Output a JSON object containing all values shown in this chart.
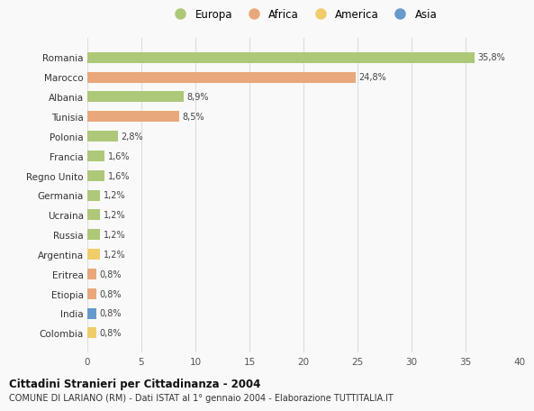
{
  "categories": [
    "Romania",
    "Marocco",
    "Albania",
    "Tunisia",
    "Polonia",
    "Francia",
    "Regno Unito",
    "Germania",
    "Ucraina",
    "Russia",
    "Argentina",
    "Eritrea",
    "Etiopia",
    "India",
    "Colombia"
  ],
  "values": [
    35.8,
    24.8,
    8.9,
    8.5,
    2.8,
    1.6,
    1.6,
    1.2,
    1.2,
    1.2,
    1.2,
    0.8,
    0.8,
    0.8,
    0.8
  ],
  "labels": [
    "35,8%",
    "24,8%",
    "8,9%",
    "8,5%",
    "2,8%",
    "1,6%",
    "1,6%",
    "1,2%",
    "1,2%",
    "1,2%",
    "1,2%",
    "0,8%",
    "0,8%",
    "0,8%",
    "0,8%"
  ],
  "continents": [
    "Europa",
    "Africa",
    "Europa",
    "Africa",
    "Europa",
    "Europa",
    "Europa",
    "Europa",
    "Europa",
    "Europa",
    "America",
    "Africa",
    "Africa",
    "Asia",
    "America"
  ],
  "colors": {
    "Europa": "#adc878",
    "Africa": "#e8a87c",
    "America": "#f0cc6a",
    "Asia": "#6699cc"
  },
  "xlim": [
    0,
    40
  ],
  "xticks": [
    0,
    5,
    10,
    15,
    20,
    25,
    30,
    35,
    40
  ],
  "title": "Cittadini Stranieri per Cittadinanza - 2004",
  "subtitle": "COMUNE DI LARIANO (RM) - Dati ISTAT al 1° gennaio 2004 - Elaborazione TUTTITALIA.IT",
  "background_color": "#f9f9f9",
  "grid_color": "#dddddd",
  "bar_height": 0.55,
  "legend_order": [
    "Europa",
    "Africa",
    "America",
    "Asia"
  ]
}
